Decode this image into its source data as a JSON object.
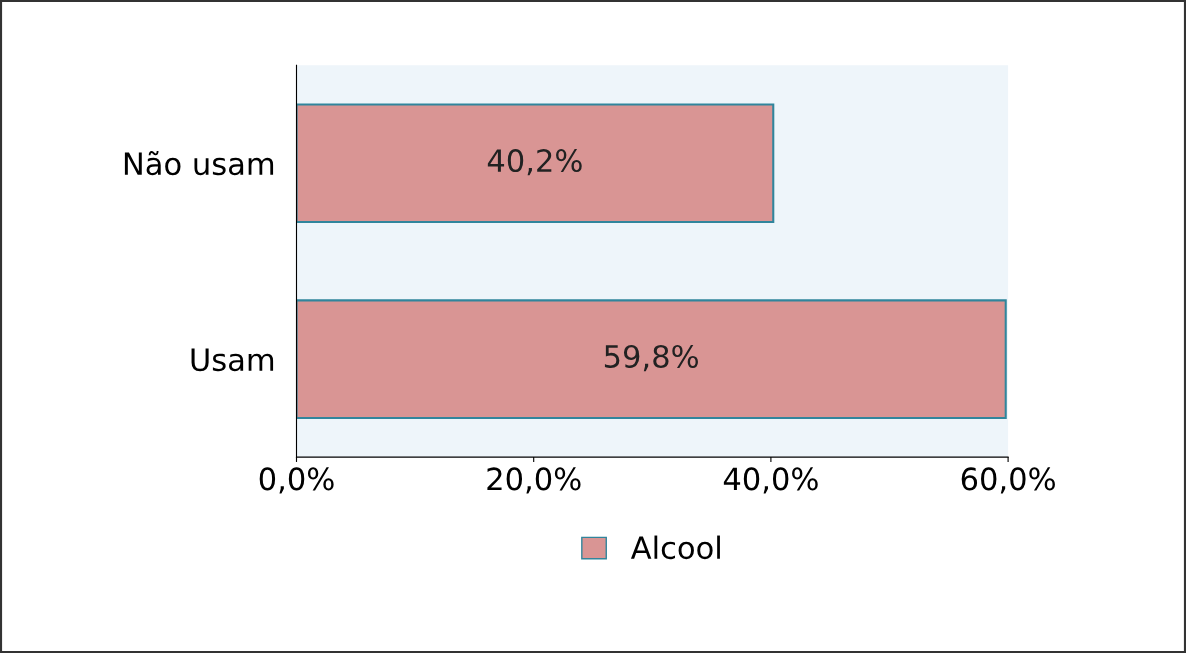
{
  "chart_data": {
    "type": "bar",
    "orientation": "horizontal",
    "categories": [
      "Não usam",
      "Usam"
    ],
    "series": [
      {
        "name": "Alcool",
        "color": "#d99594",
        "values": [
          40.2,
          59.8
        ],
        "value_labels": [
          "40,2%",
          "59,8%"
        ]
      }
    ],
    "xlim": [
      0,
      60
    ],
    "xticks": [
      {
        "value": 0,
        "label": "0,0%"
      },
      {
        "value": 20,
        "label": "20,0%"
      },
      {
        "value": 40,
        "label": "40,0%"
      },
      {
        "value": 60,
        "label": "60,0%"
      }
    ],
    "legend": "bottom",
    "grid": false
  }
}
